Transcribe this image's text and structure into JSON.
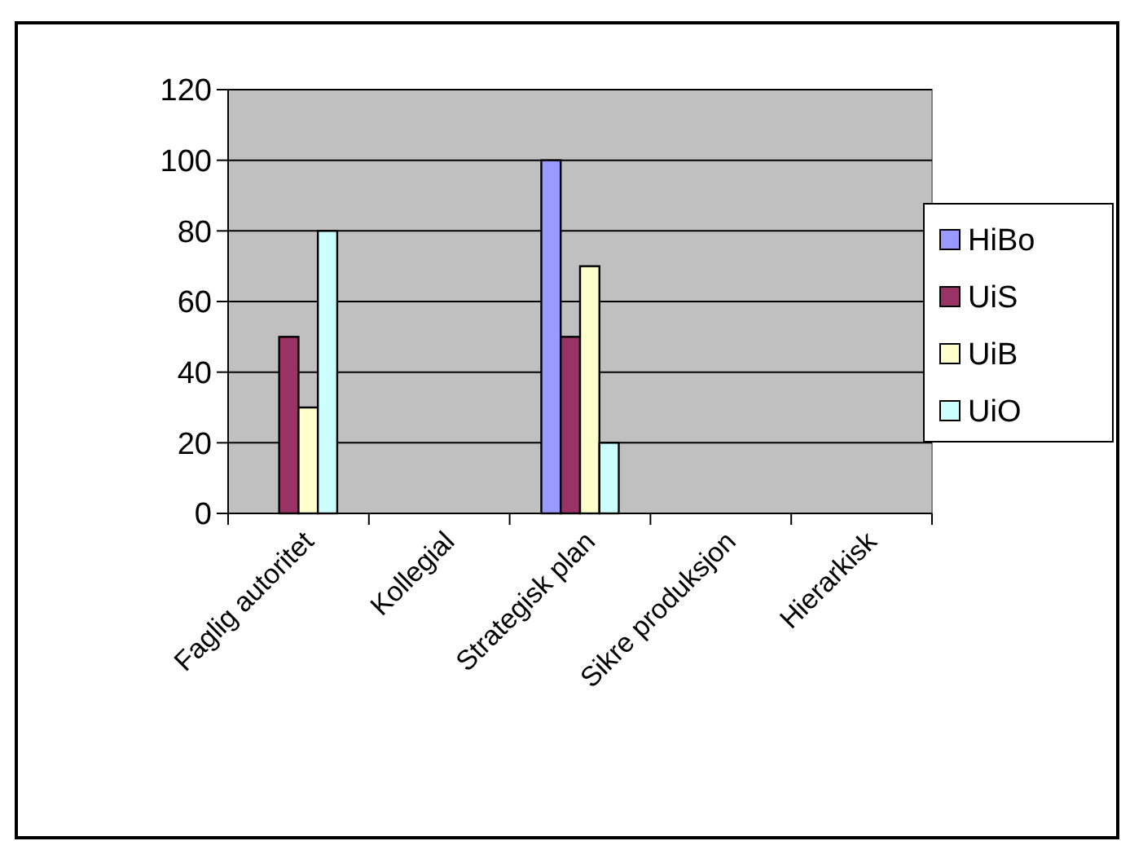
{
  "chart_data": {
    "type": "bar",
    "categories": [
      "Faglig autoritet",
      "Kollegial",
      "Strategisk plan",
      "Sikre produksjon",
      "Hierarkisk"
    ],
    "series": [
      {
        "name": "HiBo",
        "color": "#9999ff",
        "values": [
          0,
          0,
          100,
          0,
          0
        ]
      },
      {
        "name": "UiS",
        "color": "#993366",
        "values": [
          50,
          0,
          50,
          0,
          0
        ]
      },
      {
        "name": "UiB",
        "color": "#ffffcc",
        "values": [
          30,
          0,
          70,
          0,
          0
        ]
      },
      {
        "name": "UiO",
        "color": "#ccffff",
        "values": [
          80,
          0,
          20,
          0,
          0
        ]
      }
    ],
    "ylim": [
      0,
      120
    ],
    "yticks": [
      0,
      20,
      40,
      60,
      80,
      100,
      120
    ],
    "grid": "y",
    "legend": "right"
  }
}
